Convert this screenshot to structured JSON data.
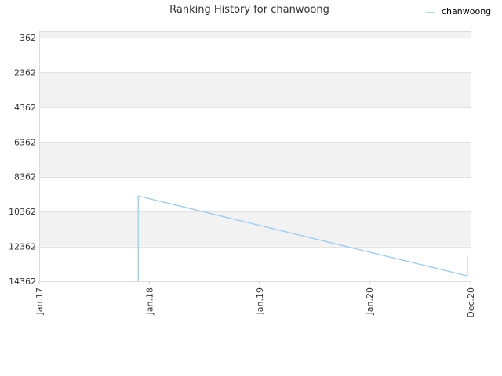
{
  "chart_data": {
    "type": "line",
    "title": "Ranking History for chanwoong",
    "xlabel": "",
    "ylabel": "",
    "y_reversed": true,
    "ylim": [
      362,
      14362
    ],
    "xlim": [
      "2017-01-01",
      "2020-12-01"
    ],
    "y_ticks": [
      "362",
      "2362",
      "4362",
      "6362",
      "8362",
      "10362",
      "12362",
      "14362"
    ],
    "x_ticks": [
      {
        "label": "Jan.17",
        "date": "2017-01-01"
      },
      {
        "label": "Jan.18",
        "date": "2018-01-01"
      },
      {
        "label": "Jan.19",
        "date": "2019-01-01"
      },
      {
        "label": "Jan.20",
        "date": "2020-01-01"
      },
      {
        "label": "Dec.20",
        "date": "2020-12-01"
      }
    ],
    "legend_position": "top-right",
    "grid": true,
    "series": [
      {
        "name": "chanwoong",
        "color": "#99ccf5",
        "points": [
          {
            "x": "2017-11-25",
            "y": 14362
          },
          {
            "x": "2017-11-25",
            "y": 9462
          },
          {
            "x": "2020-11-20",
            "y": 14050
          },
          {
            "x": "2020-11-20",
            "y": 12900
          }
        ]
      }
    ]
  }
}
